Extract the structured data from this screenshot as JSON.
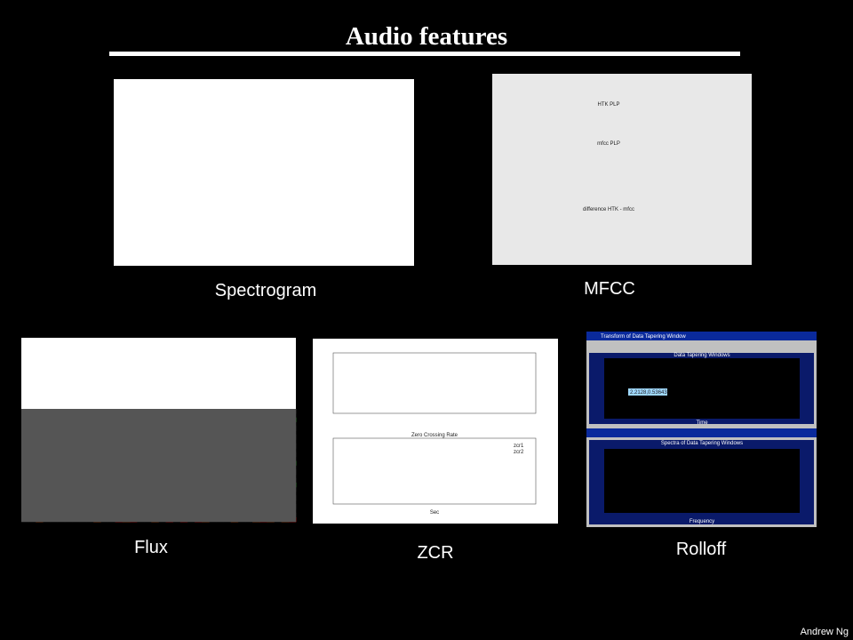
{
  "slide": {
    "title": "Audio features",
    "footer": "Andrew Ng",
    "figures": [
      {
        "label": "Spectrogram"
      },
      {
        "label": "MFCC",
        "texts": [
          "HTK PLP",
          "mfcc PLP",
          "difference HTK - mfcc"
        ]
      },
      {
        "label": "Flux"
      },
      {
        "label": "ZCR",
        "texts": [
          "Zero Crossing Rate",
          "Sec",
          "zcr1",
          "zcr2"
        ]
      },
      {
        "label": "Rolloff",
        "texts": [
          "Transform of Data Tapering Window",
          "Data Tapering Windows",
          "Time",
          "Spectra of Data Tapering Windows",
          "Frequency",
          "2.2128,0.53643"
        ]
      }
    ]
  }
}
